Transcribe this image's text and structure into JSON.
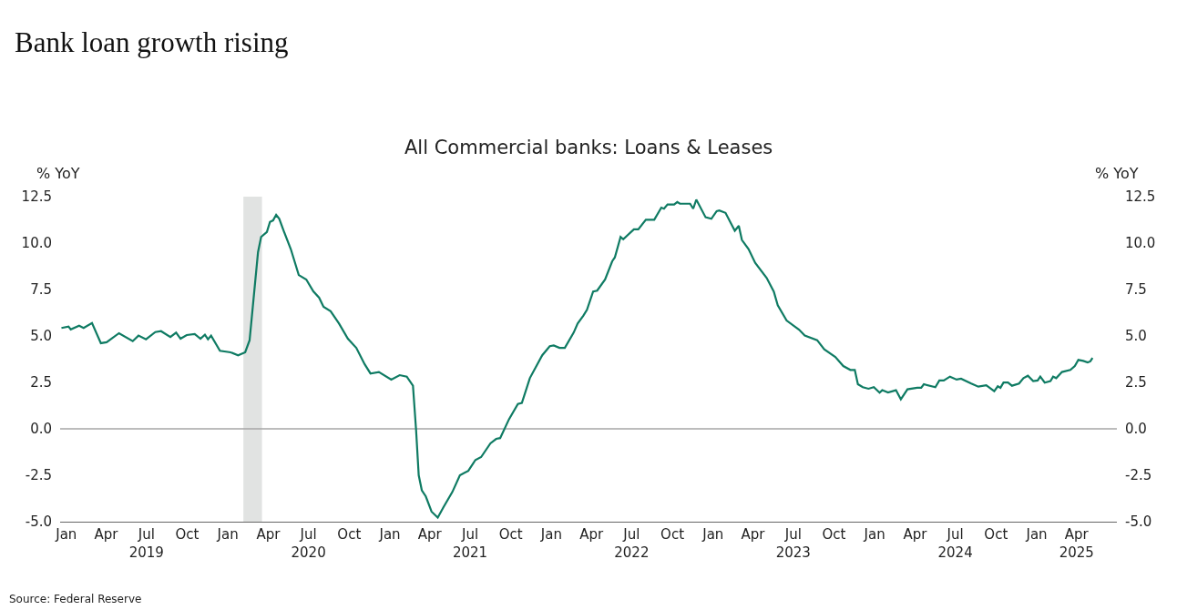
{
  "chart_data": {
    "type": "line",
    "title": "Bank loan growth rising",
    "subtitle": "All Commercial banks: Loans & Leases",
    "ylabel": "% YoY",
    "y2label": "% YoY",
    "annotations": [
      "Source: Federal Reserve"
    ],
    "x": [
      "2019-01-04",
      "2019-01-20",
      "2019-01-25",
      "2019-02-13",
      "2019-02-23",
      "2019-03-14",
      "2019-04-03",
      "2019-04-16",
      "2019-05-14",
      "2019-06-14",
      "2019-06-27",
      "2019-07-14",
      "2019-08-04",
      "2019-08-17",
      "2019-09-07",
      "2019-09-20",
      "2019-09-30",
      "2019-10-14",
      "2019-11-01",
      "2019-11-14",
      "2019-11-24",
      "2019-12-01",
      "2019-12-08",
      "2019-12-28",
      "2020-01-21",
      "2020-02-07",
      "2020-02-23",
      "2020-03-04",
      "2020-03-23",
      "2020-03-30",
      "2020-04-12",
      "2020-04-19",
      "2020-04-26",
      "2020-05-03",
      "2020-05-10",
      "2020-05-20",
      "2020-06-05",
      "2020-06-23",
      "2020-07-10",
      "2020-07-26",
      "2020-08-08",
      "2020-08-18",
      "2020-09-03",
      "2020-09-22",
      "2020-10-12",
      "2020-10-31",
      "2020-11-19",
      "2020-12-02",
      "2020-12-21",
      "2021-01-18",
      "2021-02-06",
      "2021-02-22",
      "2021-03-08",
      "2021-03-15",
      "2021-03-21",
      "2021-03-28",
      "2021-04-06",
      "2021-04-19",
      "2021-05-03",
      "2021-05-16",
      "2021-06-05",
      "2021-06-22",
      "2021-07-11",
      "2021-07-27",
      "2021-08-09",
      "2021-08-30",
      "2021-09-12",
      "2021-09-21",
      "2021-10-11",
      "2021-10-31",
      "2021-11-09",
      "2021-11-27",
      "2021-12-25",
      "2022-01-11",
      "2022-01-20",
      "2022-02-02",
      "2022-02-14",
      "2022-03-06",
      "2022-03-15",
      "2022-03-28",
      "2022-04-05",
      "2022-04-19",
      "2022-04-28",
      "2022-05-16",
      "2022-06-01",
      "2022-06-07",
      "2022-06-20",
      "2022-06-26",
      "2022-07-20",
      "2022-07-30",
      "2022-08-16",
      "2022-09-04",
      "2022-09-20",
      "2022-09-26",
      "2022-10-04",
      "2022-10-19",
      "2022-10-26",
      "2022-11-01",
      "2022-11-24",
      "2022-12-01",
      "2022-12-08",
      "2022-12-29",
      "2023-01-11",
      "2023-01-23",
      "2023-01-29",
      "2023-02-12",
      "2023-03-05",
      "2023-03-14",
      "2023-03-21",
      "2023-04-05",
      "2023-04-20",
      "2023-05-16",
      "2023-06-01",
      "2023-06-10",
      "2023-06-30",
      "2023-07-28",
      "2023-08-10",
      "2023-09-07",
      "2023-09-23",
      "2023-10-18",
      "2023-11-05",
      "2023-11-21",
      "2023-12-01",
      "2023-12-08",
      "2023-12-19",
      "2024-01-01",
      "2024-01-13",
      "2024-01-26",
      "2024-02-01",
      "2024-02-14",
      "2024-03-03",
      "2024-03-14",
      "2024-03-29",
      "2024-04-20",
      "2024-04-29",
      "2024-05-05",
      "2024-05-31",
      "2024-06-09",
      "2024-06-19",
      "2024-07-03",
      "2024-07-18",
      "2024-07-28",
      "2024-08-20",
      "2024-09-05",
      "2024-09-23",
      "2024-10-11",
      "2024-10-19",
      "2024-10-25",
      "2024-11-01",
      "2024-11-11",
      "2024-11-20",
      "2024-12-06",
      "2024-12-16",
      "2024-12-26",
      "2025-01-07",
      "2025-01-17",
      "2025-01-23",
      "2025-02-02",
      "2025-02-15",
      "2025-02-21",
      "2025-02-28",
      "2025-03-13",
      "2025-04-01",
      "2025-04-11",
      "2025-04-19",
      "2025-04-30",
      "2025-05-10",
      "2025-05-16",
      "2025-05-21"
    ],
    "series": [
      {
        "color": "#0f7b63",
        "values": [
          5.43,
          5.51,
          5.35,
          5.55,
          5.43,
          5.7,
          4.61,
          4.66,
          5.15,
          4.72,
          5.02,
          4.82,
          5.21,
          5.26,
          4.94,
          5.18,
          4.85,
          5.05,
          5.1,
          4.85,
          5.07,
          4.82,
          5.02,
          4.2,
          4.12,
          3.96,
          4.12,
          4.77,
          9.51,
          10.33,
          10.6,
          11.14,
          11.22,
          11.52,
          11.31,
          10.66,
          9.68,
          8.28,
          8.04,
          7.4,
          7.06,
          6.57,
          6.33,
          5.67,
          4.85,
          4.36,
          3.47,
          2.98,
          3.06,
          2.65,
          2.89,
          2.81,
          2.32,
          -0.05,
          -2.5,
          -3.31,
          -3.64,
          -4.46,
          -4.78,
          -4.22,
          -3.4,
          -2.5,
          -2.26,
          -1.68,
          -1.52,
          -0.78,
          -0.54,
          -0.5,
          0.52,
          1.34,
          1.39,
          2.73,
          3.96,
          4.45,
          4.49,
          4.36,
          4.36,
          5.18,
          5.67,
          6.1,
          6.41,
          7.39,
          7.44,
          8.04,
          9.02,
          9.23,
          10.33,
          10.21,
          10.74,
          10.74,
          11.26,
          11.26,
          11.91,
          11.85,
          12.08,
          12.08,
          12.21,
          12.12,
          12.12,
          11.85,
          12.34,
          11.39,
          11.31,
          11.72,
          11.76,
          11.63,
          10.66,
          10.93,
          10.17,
          9.68,
          8.94,
          8.12,
          7.39,
          6.65,
          5.83,
          5.34,
          5.02,
          4.77,
          4.28,
          3.87,
          3.38,
          3.17,
          3.17,
          2.4,
          2.24,
          2.16,
          2.24,
          1.95,
          2.08,
          1.96,
          2.08,
          1.59,
          2.13,
          2.21,
          2.21,
          2.4,
          2.24,
          2.6,
          2.6,
          2.81,
          2.65,
          2.7,
          2.44,
          2.27,
          2.35,
          2.03,
          2.29,
          2.21,
          2.49,
          2.49,
          2.32,
          2.44,
          2.73,
          2.86,
          2.57,
          2.6,
          2.81,
          2.49,
          2.57,
          2.81,
          2.73,
          3.06,
          3.17,
          3.38,
          3.71,
          3.66,
          3.58,
          3.63,
          3.82
        ]
      }
    ],
    "xlim": [
      "2019-01-01",
      "2025-07-15"
    ],
    "xticks": [
      {
        "value": "2019-01-15",
        "label": "Jan"
      },
      {
        "value": "2019-04-15",
        "label": "Apr"
      },
      {
        "value": "2019-07-15",
        "label": "Jul\n2019"
      },
      {
        "value": "2019-10-15",
        "label": "Oct"
      },
      {
        "value": "2020-01-15",
        "label": "Jan"
      },
      {
        "value": "2020-04-15",
        "label": "Apr"
      },
      {
        "value": "2020-07-15",
        "label": "Jul\n2020"
      },
      {
        "value": "2020-10-15",
        "label": "Oct"
      },
      {
        "value": "2021-01-15",
        "label": "Jan"
      },
      {
        "value": "2021-04-15",
        "label": "Apr"
      },
      {
        "value": "2021-07-15",
        "label": "Jul\n2021"
      },
      {
        "value": "2021-10-15",
        "label": "Oct"
      },
      {
        "value": "2022-01-15",
        "label": "Jan"
      },
      {
        "value": "2022-04-15",
        "label": "Apr"
      },
      {
        "value": "2022-07-15",
        "label": "Jul\n2022"
      },
      {
        "value": "2022-10-15",
        "label": "Oct"
      },
      {
        "value": "2023-01-15",
        "label": "Jan"
      },
      {
        "value": "2023-04-15",
        "label": "Apr"
      },
      {
        "value": "2023-07-15",
        "label": "Jul\n2023"
      },
      {
        "value": "2023-10-15",
        "label": "Oct"
      },
      {
        "value": "2024-01-15",
        "label": "Jan"
      },
      {
        "value": "2024-04-15",
        "label": "Apr"
      },
      {
        "value": "2024-07-15",
        "label": "Jul\n2024"
      },
      {
        "value": "2024-10-15",
        "label": "Oct"
      },
      {
        "value": "2025-01-15",
        "label": "Jan"
      },
      {
        "value": "2025-04-15",
        "label": "Apr\n2025"
      }
    ],
    "ylim": [
      -5,
      12.5
    ],
    "yticks": [
      {
        "value": 12.5,
        "label": "12.5"
      },
      {
        "value": 10,
        "label": "10.0"
      },
      {
        "value": 7.5,
        "label": "7.5"
      },
      {
        "value": 5,
        "label": "5.0"
      },
      {
        "value": 2.5,
        "label": "2.5"
      },
      {
        "value": 0,
        "label": "0.0"
      },
      {
        "value": -2.5,
        "label": "-2.5"
      },
      {
        "value": -5,
        "label": "-5.0"
      }
    ],
    "y2lim": [
      -5,
      12.5
    ],
    "y2ticks": [
      {
        "value": 12.5,
        "label": "12.5"
      },
      {
        "value": 10,
        "label": "10.0"
      },
      {
        "value": 7.5,
        "label": "7.5"
      },
      {
        "value": 5,
        "label": "5.0"
      },
      {
        "value": 2.5,
        "label": "2.5"
      },
      {
        "value": 0,
        "label": "0.0"
      },
      {
        "value": -2.5,
        "label": "-2.5"
      },
      {
        "value": -5,
        "label": "-5.0"
      }
    ],
    "ref_lines": [
      {
        "axis": "y",
        "value": 0,
        "color": "#a6a6a6"
      }
    ],
    "bands": [
      {
        "axis": "x",
        "from": "2020-02-19",
        "to": "2020-04-01",
        "color": "#e1e3e2"
      }
    ],
    "grid": false,
    "marker": "none",
    "line_style": "solid"
  }
}
